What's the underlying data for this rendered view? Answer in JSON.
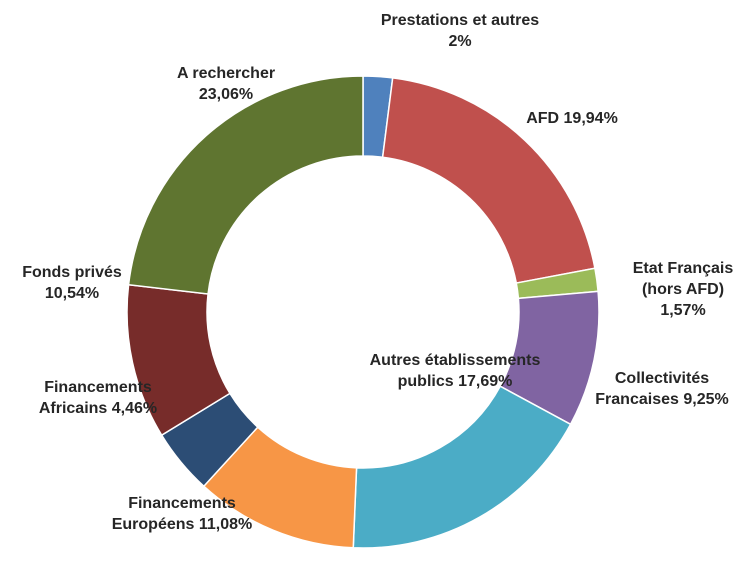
{
  "chart_data": {
    "type": "pie",
    "donut": true,
    "categories": [
      "Prestations et autres",
      "AFD",
      "Etat Français (hors AFD)",
      "Collectivités Francaises",
      "Autres établissements publics",
      "Financements Européens",
      "Financements Africains",
      "Fonds privés",
      "A rechercher"
    ],
    "values": [
      2,
      19.94,
      1.57,
      9.25,
      17.69,
      11.08,
      4.46,
      10.54,
      23.06
    ],
    "value_labels": [
      "2%",
      "19,94%",
      "1,57%",
      "9,25%",
      "17,69%",
      "11,08%",
      "4,46%",
      "10,54%",
      "23,06%"
    ],
    "colors": [
      "#4f81bd",
      "#c0504d",
      "#9bbb59",
      "#8064a2",
      "#4bacc6",
      "#f79646",
      "#2c4d75",
      "#772c2a",
      "#5f7530"
    ]
  }
}
